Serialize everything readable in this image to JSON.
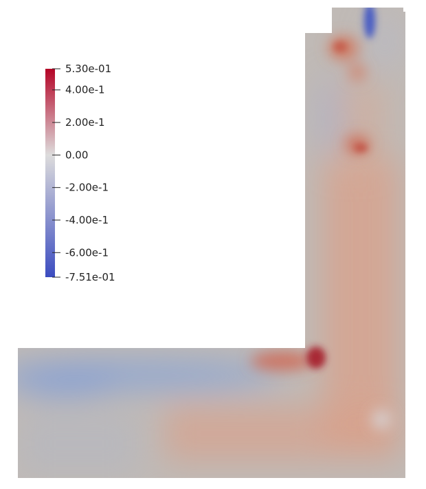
{
  "chart_data": {
    "type": "heatmap",
    "title": "",
    "colormap": {
      "name": "Cool to Warm",
      "min": -0.751,
      "max": 0.53,
      "stops": [
        {
          "value": 0.53,
          "color": "#b40426"
        },
        {
          "value": 0.0,
          "color": "#dddcdc"
        },
        {
          "value": -0.751,
          "color": "#3b4cc0"
        }
      ]
    },
    "colorbar": {
      "ticks": [
        {
          "value": 0.53,
          "label": "5.30e-01"
        },
        {
          "value": 0.4,
          "label": "4.00e-1"
        },
        {
          "value": 0.2,
          "label": "2.00e-1"
        },
        {
          "value": 0.0,
          "label": "0.00"
        },
        {
          "value": -0.2,
          "label": "-2.00e-1"
        },
        {
          "value": -0.4,
          "label": "-4.00e-1"
        },
        {
          "value": -0.6,
          "label": "-6.00e-1"
        },
        {
          "value": -0.751,
          "label": "-7.51e-01"
        }
      ]
    },
    "field_features": [
      {
        "region": "lower-left channel",
        "value": -0.3
      },
      {
        "region": "upper outlet",
        "value": -0.7
      },
      {
        "region": "corner hotspot",
        "value": 0.53
      }
    ]
  }
}
